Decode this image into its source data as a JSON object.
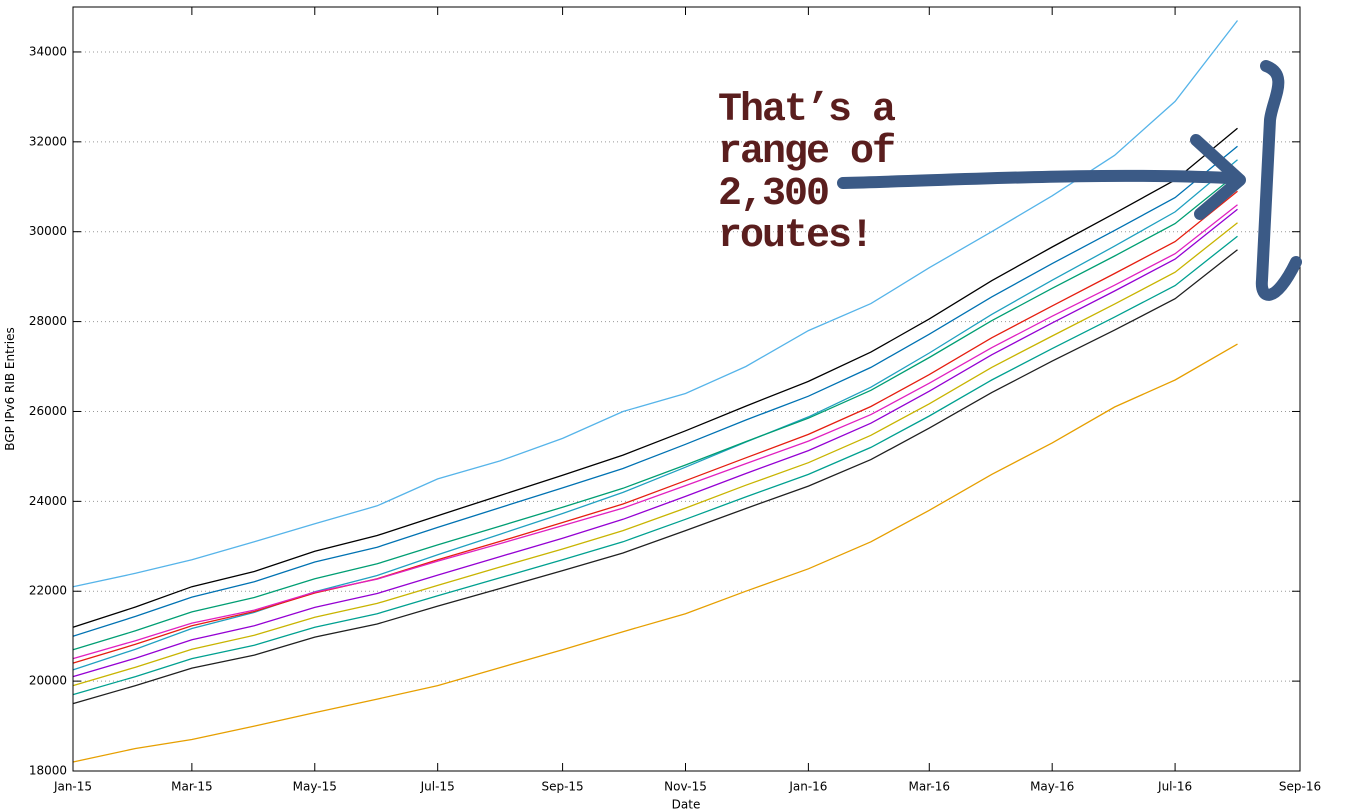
{
  "chart_data": {
    "type": "line",
    "y_label": "BGP IPv6 RIB Entries",
    "x_label": "Date",
    "annotation": [
      "That’s a",
      "range of",
      "2,300",
      "routes!"
    ],
    "x": [
      "Jan-15",
      "Feb-15",
      "Mar-15",
      "Apr-15",
      "May-15",
      "Jun-15",
      "Jul-15",
      "Aug-15",
      "Sep-15",
      "Oct-15",
      "Nov-15",
      "Dec-15",
      "Jan-16",
      "Feb-16",
      "Mar-16",
      "Apr-16",
      "May-16",
      "Jun-16",
      "Jul-16",
      "Aug-16"
    ],
    "xlim": [
      "Jan-15",
      "Sep-16"
    ],
    "xticks": [
      "Jan-15",
      "Mar-15",
      "May-15",
      "Jul-15",
      "Sep-15",
      "Nov-15",
      "Jan-16",
      "Mar-16",
      "May-16",
      "Jul-16",
      "Sep-16"
    ],
    "ylim": [
      18000,
      35000
    ],
    "yticks": [
      18000,
      20000,
      22000,
      24000,
      26000,
      28000,
      30000,
      32000,
      34000
    ],
    "grid": true,
    "series": [
      {
        "color": "#56b4e9",
        "values": [
          22100,
          22400,
          22700,
          23100,
          23500,
          23900,
          24500,
          24900,
          25400,
          26000,
          26400,
          27000,
          27800,
          28400,
          29200,
          30000,
          30800,
          31700,
          32900,
          34700
        ]
      },
      {
        "color": "#000000",
        "values": [
          21200,
          21650,
          22100,
          22440,
          22890,
          23240,
          23680,
          24130,
          24580,
          25030,
          25570,
          26120,
          26670,
          27320,
          28060,
          28910,
          29660,
          30410,
          31150,
          32300
        ]
      },
      {
        "color": "#0072b2",
        "values": [
          21000,
          21440,
          21870,
          22210,
          22650,
          22980,
          23420,
          23860,
          24300,
          24730,
          25270,
          25810,
          26340,
          26980,
          27720,
          28550,
          29290,
          30030,
          30760,
          31900
        ]
      },
      {
        "color": "#20a0c0",
        "values": [
          20250,
          20710,
          21170,
          21530,
          21990,
          22350,
          22810,
          23270,
          23730,
          24200,
          24760,
          25320,
          25880,
          26540,
          27300,
          28160,
          28920,
          29680,
          30440,
          31600
        ]
      },
      {
        "color": "#009e73",
        "values": [
          20700,
          21120,
          21540,
          21860,
          22280,
          22610,
          23030,
          23450,
          23870,
          24290,
          24810,
          25330,
          25850,
          26470,
          27200,
          28020,
          28740,
          29460,
          30180,
          31300
        ]
      },
      {
        "color": "#e51e10",
        "values": [
          20400,
          20820,
          21230,
          21550,
          21960,
          22280,
          22700,
          23110,
          23530,
          23940,
          24460,
          24970,
          25490,
          26110,
          26820,
          27640,
          28350,
          29070,
          29780,
          30900
        ]
      },
      {
        "color": "#e020c0",
        "values": [
          20500,
          20900,
          21290,
          21580,
          21980,
          22270,
          22670,
          23060,
          23460,
          23850,
          24350,
          24840,
          25340,
          25930,
          26630,
          27420,
          28120,
          28810,
          29510,
          30600
        ]
      },
      {
        "color": "#9400d3",
        "values": [
          20100,
          20510,
          20920,
          21230,
          21640,
          21950,
          22360,
          22770,
          23180,
          23600,
          24110,
          24620,
          25130,
          25740,
          26450,
          27260,
          27970,
          28680,
          29390,
          30500
        ]
      },
      {
        "color": "#c8b400",
        "values": [
          19900,
          20310,
          20710,
          21020,
          21420,
          21730,
          22130,
          22540,
          22940,
          23350,
          23850,
          24360,
          24860,
          25470,
          26170,
          26980,
          27680,
          28390,
          29100,
          30200
        ]
      },
      {
        "color": "#00a090",
        "values": [
          19700,
          20100,
          20500,
          20800,
          21200,
          21500,
          21900,
          22300,
          22700,
          23100,
          23600,
          24100,
          24600,
          25200,
          25900,
          26700,
          27400,
          28100,
          28800,
          29900
        ]
      },
      {
        "color": "#202020",
        "values": [
          19500,
          19900,
          20290,
          20580,
          20980,
          21270,
          21670,
          22060,
          22460,
          22850,
          23350,
          23840,
          24340,
          24930,
          25630,
          26420,
          27120,
          27810,
          28510,
          29600
        ]
      },
      {
        "color": "#e69f00",
        "values": [
          18200,
          18500,
          18700,
          19000,
          19300,
          19600,
          19900,
          20300,
          20700,
          21100,
          21500,
          22000,
          22500,
          23100,
          23800,
          24600,
          25300,
          26100,
          26700,
          27500
        ]
      }
    ]
  }
}
